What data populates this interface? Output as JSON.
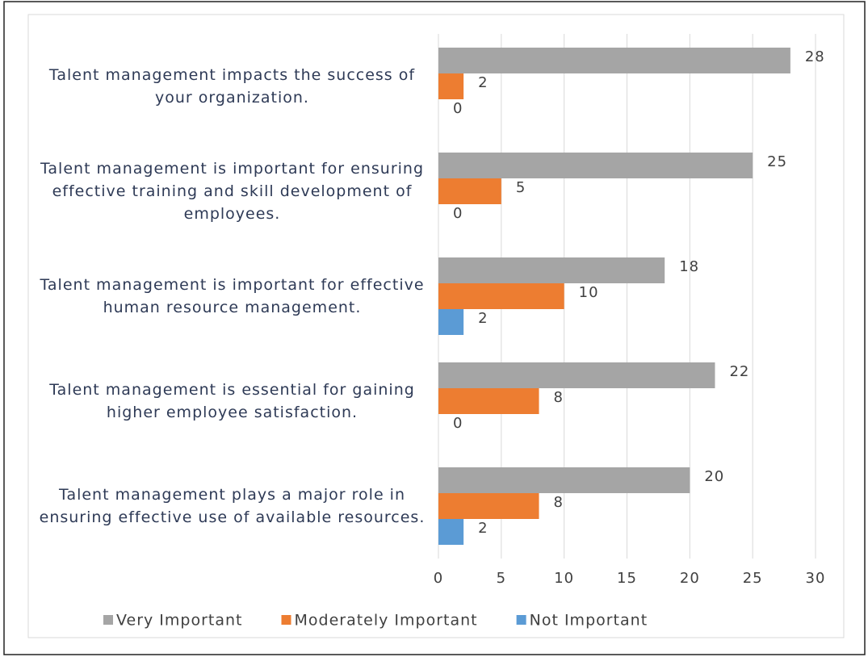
{
  "chart_data": {
    "type": "barh",
    "categories": [
      "Talent management impacts the success of your organization.",
      "Talent management is important for ensuring effective training and skill development of employees.",
      "Talent management is important for effective human resource management.",
      "Talent management is essential for gaining higher employee satisfaction.",
      "Talent management plays a major role in ensuring effective use of available resources."
    ],
    "series": [
      {
        "name": "Very Important",
        "color": "#a5a5a5",
        "values": [
          28,
          25,
          18,
          22,
          20
        ]
      },
      {
        "name": "Moderately Important",
        "color": "#ed7d31",
        "values": [
          2,
          5,
          10,
          8,
          8
        ]
      },
      {
        "name": "Not Important",
        "color": "#5b9bd5",
        "values": [
          0,
          0,
          2,
          0,
          2
        ]
      }
    ],
    "xlim": [
      0,
      30
    ],
    "xticks": [
      0,
      5,
      10,
      15,
      20,
      25,
      30
    ],
    "grid": true,
    "legend": "bottom"
  }
}
